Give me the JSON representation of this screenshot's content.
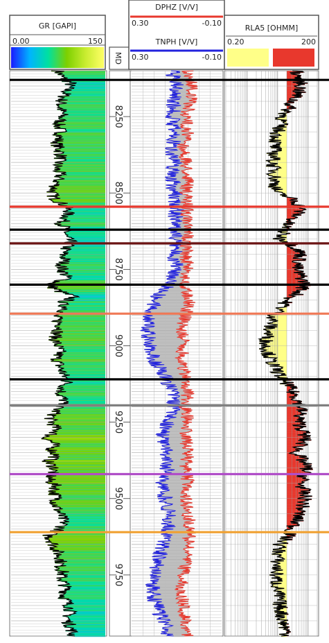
{
  "chart_data": {
    "type": "well_log",
    "depth_axis": {
      "label": "MD",
      "ticks": [
        8250,
        8500,
        8750,
        9000,
        9250,
        9500,
        9750
      ],
      "range": [
        8100,
        9950
      ],
      "unit": ""
    },
    "tracks": [
      {
        "id": "gr",
        "title": "GR [GAPI]",
        "min": "0.00",
        "max": "150",
        "color": "#000000"
      },
      {
        "id": "dphz",
        "title": "DPHZ [V/V]",
        "min": "0.30",
        "max": "-0.10",
        "color": "#e8382d"
      },
      {
        "id": "tnph",
        "title": "TNPH [V/V]",
        "min": "0.30",
        "max": "-0.10",
        "color": "#2222dd"
      },
      {
        "id": "rla5",
        "title": "RLA5 [OHMM]",
        "min": "0.20",
        "max": "200",
        "color": "#000000"
      }
    ],
    "tops": [
      {
        "depth": 8130,
        "color": "#000000"
      },
      {
        "depth": 8545,
        "color": "#e8382d"
      },
      {
        "depth": 8620,
        "color": "#000000"
      },
      {
        "depth": 8665,
        "color": "#6b1414"
      },
      {
        "depth": 8800,
        "color": "#000000"
      },
      {
        "depth": 8895,
        "color": "#f07855"
      },
      {
        "depth": 9110,
        "color": "#000000"
      },
      {
        "depth": 9195,
        "color": "#808080"
      },
      {
        "depth": 9420,
        "color": "#b04ec8"
      },
      {
        "depth": 9610,
        "color": "#f0a030"
      }
    ],
    "gr_series": [
      {
        "d": 8100,
        "v": 75
      },
      {
        "d": 8120,
        "v": 80
      },
      {
        "d": 8140,
        "v": 95
      },
      {
        "d": 8160,
        "v": 90
      },
      {
        "d": 8180,
        "v": 85
      },
      {
        "d": 8200,
        "v": 80
      },
      {
        "d": 8220,
        "v": 78
      },
      {
        "d": 8240,
        "v": 82
      },
      {
        "d": 8260,
        "v": 79
      },
      {
        "d": 8280,
        "v": 75
      },
      {
        "d": 8300,
        "v": 80
      },
      {
        "d": 8320,
        "v": 76
      },
      {
        "d": 8340,
        "v": 73
      },
      {
        "d": 8360,
        "v": 77
      },
      {
        "d": 8380,
        "v": 80
      },
      {
        "d": 8400,
        "v": 75
      },
      {
        "d": 8420,
        "v": 72
      },
      {
        "d": 8440,
        "v": 78
      },
      {
        "d": 8460,
        "v": 74
      },
      {
        "d": 8480,
        "v": 70
      },
      {
        "d": 8500,
        "v": 65
      },
      {
        "d": 8520,
        "v": 70
      },
      {
        "d": 8540,
        "v": 85
      },
      {
        "d": 8560,
        "v": 92
      },
      {
        "d": 8580,
        "v": 88
      },
      {
        "d": 8600,
        "v": 80
      },
      {
        "d": 8620,
        "v": 90
      },
      {
        "d": 8640,
        "v": 85
      },
      {
        "d": 8660,
        "v": 95
      },
      {
        "d": 8680,
        "v": 88
      },
      {
        "d": 8700,
        "v": 82
      },
      {
        "d": 8720,
        "v": 86
      },
      {
        "d": 8740,
        "v": 80
      },
      {
        "d": 8760,
        "v": 84
      },
      {
        "d": 8780,
        "v": 90
      },
      {
        "d": 8800,
        "v": 60
      },
      {
        "d": 8820,
        "v": 75
      },
      {
        "d": 8840,
        "v": 100
      },
      {
        "d": 8860,
        "v": 80
      },
      {
        "d": 8880,
        "v": 90
      },
      {
        "d": 8900,
        "v": 70
      },
      {
        "d": 8920,
        "v": 75
      },
      {
        "d": 8940,
        "v": 80
      },
      {
        "d": 8960,
        "v": 72
      },
      {
        "d": 8980,
        "v": 70
      },
      {
        "d": 9000,
        "v": 74
      },
      {
        "d": 9020,
        "v": 78
      },
      {
        "d": 9040,
        "v": 72
      },
      {
        "d": 9060,
        "v": 76
      },
      {
        "d": 9080,
        "v": 80
      },
      {
        "d": 9100,
        "v": 85
      },
      {
        "d": 9120,
        "v": 90
      },
      {
        "d": 9140,
        "v": 82
      },
      {
        "d": 9160,
        "v": 78
      },
      {
        "d": 9180,
        "v": 85
      },
      {
        "d": 9200,
        "v": 75
      },
      {
        "d": 9220,
        "v": 70
      },
      {
        "d": 9240,
        "v": 62
      },
      {
        "d": 9260,
        "v": 68
      },
      {
        "d": 9280,
        "v": 74
      },
      {
        "d": 9300,
        "v": 55
      },
      {
        "d": 9320,
        "v": 68
      },
      {
        "d": 9340,
        "v": 65
      },
      {
        "d": 9360,
        "v": 72
      },
      {
        "d": 9380,
        "v": 58
      },
      {
        "d": 9400,
        "v": 70
      },
      {
        "d": 9420,
        "v": 65
      },
      {
        "d": 9440,
        "v": 60
      },
      {
        "d": 9460,
        "v": 72
      },
      {
        "d": 9480,
        "v": 68
      },
      {
        "d": 9500,
        "v": 74
      },
      {
        "d": 9520,
        "v": 70
      },
      {
        "d": 9540,
        "v": 76
      },
      {
        "d": 9560,
        "v": 80
      },
      {
        "d": 9580,
        "v": 85
      },
      {
        "d": 9600,
        "v": 78
      },
      {
        "d": 9620,
        "v": 60
      },
      {
        "d": 9640,
        "v": 65
      },
      {
        "d": 9660,
        "v": 70
      },
      {
        "d": 9680,
        "v": 75
      },
      {
        "d": 9700,
        "v": 80
      },
      {
        "d": 9720,
        "v": 78
      },
      {
        "d": 9740,
        "v": 82
      },
      {
        "d": 9760,
        "v": 80
      },
      {
        "d": 9780,
        "v": 85
      },
      {
        "d": 9800,
        "v": 88
      },
      {
        "d": 9820,
        "v": 84
      },
      {
        "d": 9840,
        "v": 90
      },
      {
        "d": 9860,
        "v": 95
      },
      {
        "d": 9880,
        "v": 92
      },
      {
        "d": 9900,
        "v": 90
      },
      {
        "d": 9920,
        "v": 95
      },
      {
        "d": 9940,
        "v": 98
      }
    ],
    "dphz_series": [
      {
        "d": 8100,
        "v": 0.05
      },
      {
        "d": 8150,
        "v": 0.03
      },
      {
        "d": 8200,
        "v": 0.04
      },
      {
        "d": 8250,
        "v": 0.06
      },
      {
        "d": 8300,
        "v": 0.05
      },
      {
        "d": 8350,
        "v": 0.07
      },
      {
        "d": 8400,
        "v": 0.06
      },
      {
        "d": 8450,
        "v": 0.05
      },
      {
        "d": 8500,
        "v": 0.06
      },
      {
        "d": 8550,
        "v": 0.05
      },
      {
        "d": 8600,
        "v": 0.06
      },
      {
        "d": 8650,
        "v": 0.05
      },
      {
        "d": 8700,
        "v": 0.06
      },
      {
        "d": 8750,
        "v": 0.05
      },
      {
        "d": 8800,
        "v": 0.07
      },
      {
        "d": 8850,
        "v": 0.04
      },
      {
        "d": 8900,
        "v": 0.06
      },
      {
        "d": 8950,
        "v": 0.08
      },
      {
        "d": 9000,
        "v": 0.07
      },
      {
        "d": 9050,
        "v": 0.08
      },
      {
        "d": 9100,
        "v": 0.06
      },
      {
        "d": 9150,
        "v": 0.05
      },
      {
        "d": 9200,
        "v": 0.06
      },
      {
        "d": 9250,
        "v": 0.05
      },
      {
        "d": 9300,
        "v": 0.06
      },
      {
        "d": 9350,
        "v": 0.05
      },
      {
        "d": 9400,
        "v": 0.06
      },
      {
        "d": 9450,
        "v": 0.05
      },
      {
        "d": 9500,
        "v": 0.06
      },
      {
        "d": 9550,
        "v": 0.05
      },
      {
        "d": 9600,
        "v": 0.04
      },
      {
        "d": 9650,
        "v": 0.05
      },
      {
        "d": 9700,
        "v": 0.06
      },
      {
        "d": 9750,
        "v": 0.07
      },
      {
        "d": 9800,
        "v": 0.08
      },
      {
        "d": 9850,
        "v": 0.07
      },
      {
        "d": 9900,
        "v": 0.06
      },
      {
        "d": 9940,
        "v": 0.05
      }
    ],
    "tnph_series": [
      {
        "d": 8100,
        "v": 0.12
      },
      {
        "d": 8150,
        "v": 0.1
      },
      {
        "d": 8200,
        "v": 0.11
      },
      {
        "d": 8250,
        "v": 0.12
      },
      {
        "d": 8300,
        "v": 0.11
      },
      {
        "d": 8350,
        "v": 0.12
      },
      {
        "d": 8400,
        "v": 0.11
      },
      {
        "d": 8450,
        "v": 0.12
      },
      {
        "d": 8500,
        "v": 0.11
      },
      {
        "d": 8550,
        "v": 0.1
      },
      {
        "d": 8600,
        "v": 0.11
      },
      {
        "d": 8650,
        "v": 0.1
      },
      {
        "d": 8700,
        "v": 0.11
      },
      {
        "d": 8750,
        "v": 0.1
      },
      {
        "d": 8800,
        "v": 0.13
      },
      {
        "d": 8850,
        "v": 0.2
      },
      {
        "d": 8900,
        "v": 0.22
      },
      {
        "d": 8950,
        "v": 0.23
      },
      {
        "d": 9000,
        "v": 0.22
      },
      {
        "d": 9050,
        "v": 0.2
      },
      {
        "d": 9100,
        "v": 0.15
      },
      {
        "d": 9150,
        "v": 0.12
      },
      {
        "d": 9200,
        "v": 0.11
      },
      {
        "d": 9250,
        "v": 0.14
      },
      {
        "d": 9300,
        "v": 0.16
      },
      {
        "d": 9350,
        "v": 0.15
      },
      {
        "d": 9400,
        "v": 0.14
      },
      {
        "d": 9450,
        "v": 0.16
      },
      {
        "d": 9500,
        "v": 0.15
      },
      {
        "d": 9550,
        "v": 0.13
      },
      {
        "d": 9600,
        "v": 0.14
      },
      {
        "d": 9650,
        "v": 0.16
      },
      {
        "d": 9700,
        "v": 0.18
      },
      {
        "d": 9750,
        "v": 0.2
      },
      {
        "d": 9800,
        "v": 0.21
      },
      {
        "d": 9850,
        "v": 0.19
      },
      {
        "d": 9900,
        "v": 0.16
      },
      {
        "d": 9940,
        "v": 0.14
      }
    ],
    "rla5_series": [
      {
        "d": 8100,
        "v": 40
      },
      {
        "d": 8150,
        "v": 60
      },
      {
        "d": 8200,
        "v": 30
      },
      {
        "d": 8250,
        "v": 15
      },
      {
        "d": 8300,
        "v": 10
      },
      {
        "d": 8350,
        "v": 8
      },
      {
        "d": 8400,
        "v": 7
      },
      {
        "d": 8450,
        "v": 8
      },
      {
        "d": 8500,
        "v": 9
      },
      {
        "d": 8550,
        "v": 60
      },
      {
        "d": 8600,
        "v": 20
      },
      {
        "d": 8650,
        "v": 12
      },
      {
        "d": 8700,
        "v": 60
      },
      {
        "d": 8750,
        "v": 40
      },
      {
        "d": 8800,
        "v": 80
      },
      {
        "d": 8850,
        "v": 20
      },
      {
        "d": 8900,
        "v": 8
      },
      {
        "d": 8950,
        "v": 5
      },
      {
        "d": 9000,
        "v": 4
      },
      {
        "d": 9050,
        "v": 6
      },
      {
        "d": 9100,
        "v": 12
      },
      {
        "d": 9150,
        "v": 30
      },
      {
        "d": 9200,
        "v": 60
      },
      {
        "d": 9250,
        "v": 50
      },
      {
        "d": 9300,
        "v": 80
      },
      {
        "d": 9350,
        "v": 40
      },
      {
        "d": 9400,
        "v": 90
      },
      {
        "d": 9450,
        "v": 60
      },
      {
        "d": 9500,
        "v": 80
      },
      {
        "d": 9550,
        "v": 50
      },
      {
        "d": 9600,
        "v": 30
      },
      {
        "d": 9650,
        "v": 12
      },
      {
        "d": 9700,
        "v": 10
      },
      {
        "d": 9750,
        "v": 9
      },
      {
        "d": 9800,
        "v": 10
      },
      {
        "d": 9850,
        "v": 12
      },
      {
        "d": 9900,
        "v": 15
      },
      {
        "d": 9940,
        "v": 20
      }
    ]
  },
  "colors": {
    "gr_ramp": [
      "#1a1aff",
      "#00b4ff",
      "#00e0a0",
      "#7dd000",
      "#c8ec30",
      "#ffff66"
    ],
    "rla5_fill_low": "#ffff88",
    "rla5_fill_high": "#e8382d",
    "neutron_density_fill": "#bfbfbf"
  }
}
